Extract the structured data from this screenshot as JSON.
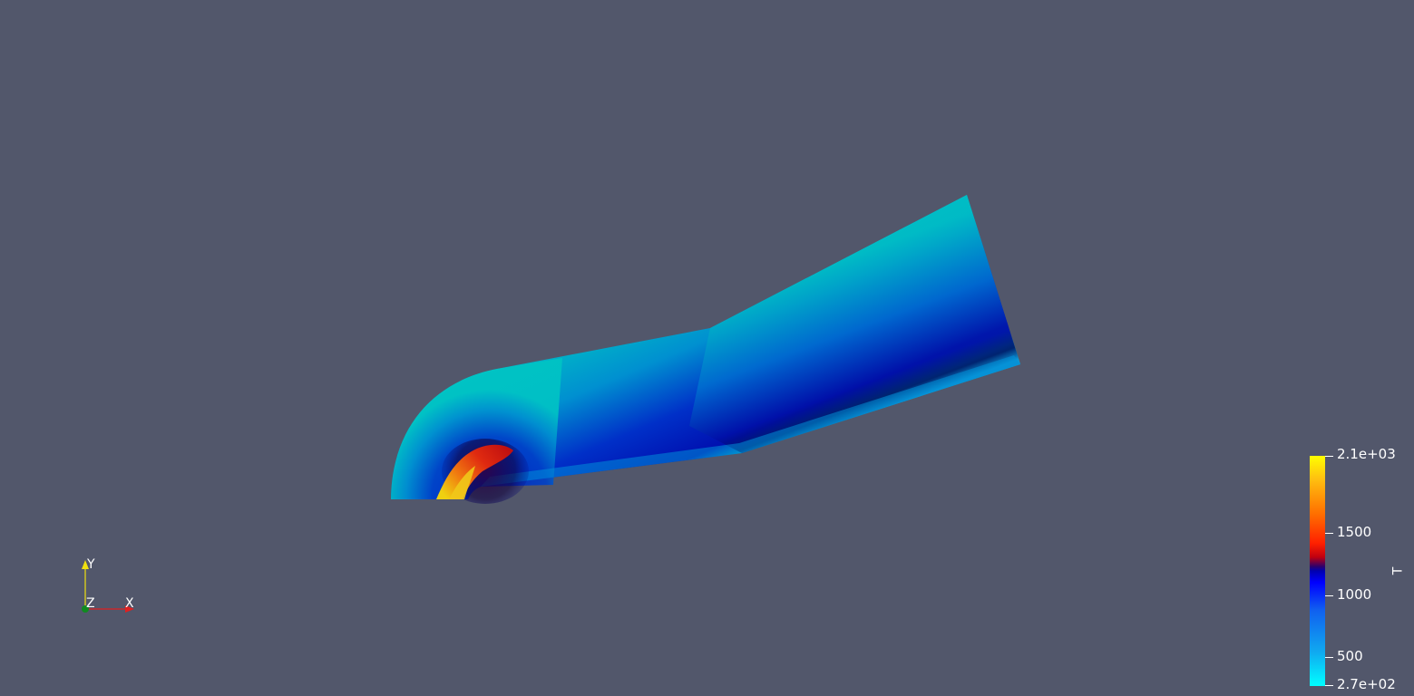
{
  "render_view": {
    "background_color": "#52576b",
    "scalar_field": "T"
  },
  "colorbar": {
    "title": "T",
    "ticks": [
      {
        "label": "2.1e+03",
        "value": 2100
      },
      {
        "label": "1500",
        "value": 1500
      },
      {
        "label": "1000",
        "value": 1000
      },
      {
        "label": "500",
        "value": 500
      },
      {
        "label": "2.7e+02",
        "value": 270
      }
    ],
    "range": [
      270,
      2100
    ]
  },
  "orientation_axes": {
    "y_label": "Y",
    "z_label": "Z",
    "x_label": "X",
    "y_color": "#f0e010",
    "z_color": "#10a020",
    "x_color": "#e02020"
  }
}
